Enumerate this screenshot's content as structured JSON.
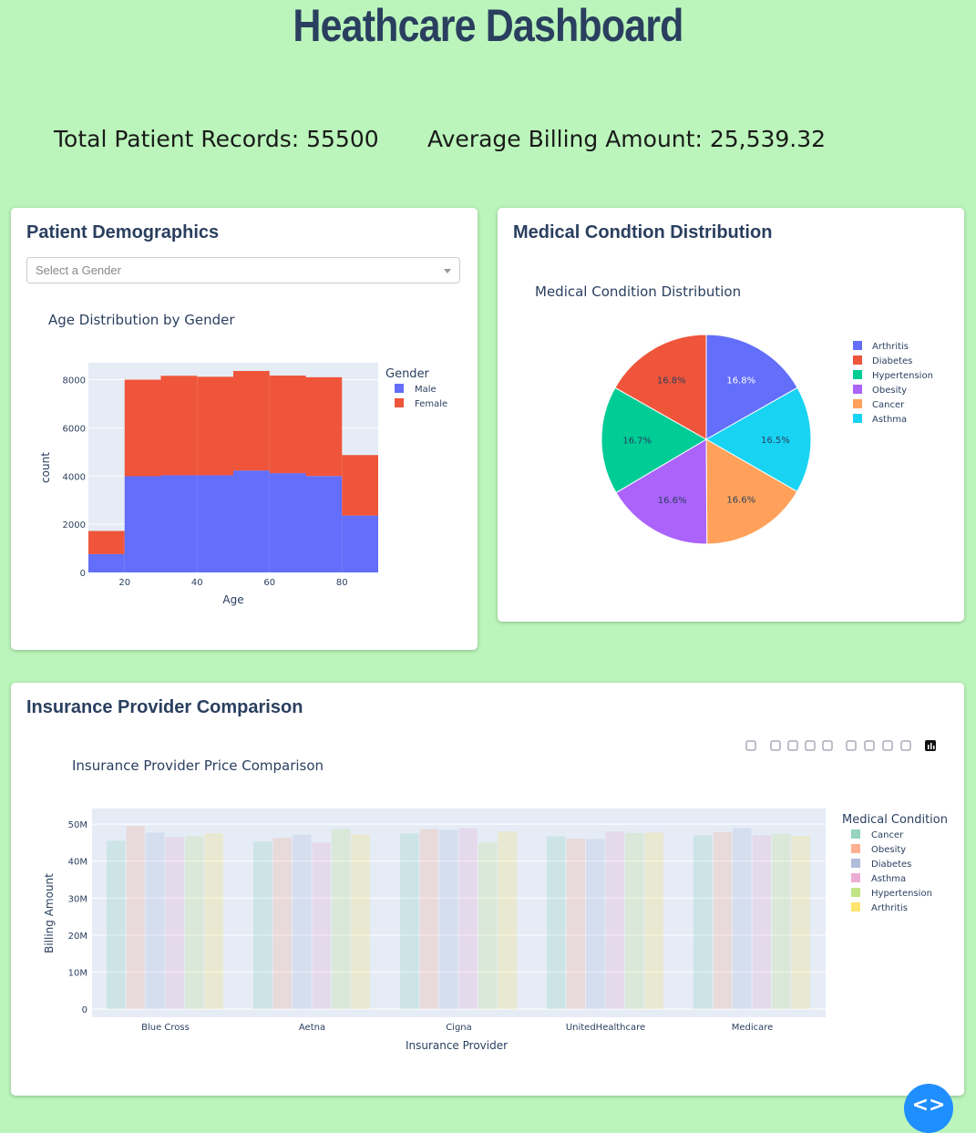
{
  "header": {
    "title": "Heathcare Dashboard"
  },
  "stats": {
    "total_records": "Total Patient Records: 55500",
    "avg_billing": "Average Billing Amount: 25,539.32"
  },
  "demographics": {
    "card_title": "Patient Demographics",
    "dropdown_placeholder": "Select a Gender",
    "chart_title": "Age Distribution by Gender",
    "legend_title": "Gender",
    "xlabel": "Age",
    "ylabel": "count",
    "x_ticks": [
      "20",
      "40",
      "60",
      "80"
    ],
    "y_ticks": [
      "0",
      "2000",
      "4000",
      "6000",
      "8000"
    ]
  },
  "conditions": {
    "card_title": "Medical Condtion Distribution",
    "chart_title": "Medical Condition Distribution"
  },
  "insurance": {
    "card_title": "Insurance Provider Comparison",
    "chart_title": "Insurance Provider Price Comparison",
    "legend_title": "Medical Condition",
    "xlabel": "Insurance Provider",
    "ylabel": "Billing Amount",
    "y_ticks": [
      "0",
      "10M",
      "20M",
      "30M",
      "40M",
      "50M"
    ],
    "modebar": [
      "camera-icon",
      "zoom-icon",
      "pan-icon",
      "box-select-icon",
      "lasso-icon",
      "zoom-in-icon",
      "zoom-out-icon",
      "autoscale-icon",
      "reset-axes-icon",
      "plotly-logo-icon"
    ]
  },
  "fab": {
    "label": "<>"
  },
  "chart_data": [
    {
      "type": "bar",
      "stacked": true,
      "title": "Age Distribution by Gender",
      "xlabel": "Age",
      "ylabel": "count",
      "bins": [
        [
          10,
          20
        ],
        [
          20,
          30
        ],
        [
          30,
          40
        ],
        [
          40,
          50
        ],
        [
          50,
          60
        ],
        [
          60,
          70
        ],
        [
          70,
          80
        ],
        [
          80,
          90
        ]
      ],
      "ylim": [
        0,
        8700
      ],
      "series": [
        {
          "name": "Male",
          "color": "#636efa",
          "values": [
            760,
            3990,
            4030,
            4030,
            4230,
            4120,
            4000,
            2360
          ]
        },
        {
          "name": "Female",
          "color": "#ef553b",
          "values": [
            960,
            4010,
            4130,
            4090,
            4130,
            4050,
            4100,
            2510
          ]
        }
      ],
      "legend_position": "right"
    },
    {
      "type": "pie",
      "title": "Medical Condition Distribution",
      "slices": [
        {
          "label": "Arthritis",
          "value": 16.8,
          "text": "16.8%",
          "color": "#636efa"
        },
        {
          "label": "Asthma",
          "value": 16.5,
          "text": "16.5%",
          "color": "#19d3f3"
        },
        {
          "label": "Cancer",
          "value": 16.6,
          "text": "16.6%",
          "color": "#ffa15a"
        },
        {
          "label": "Obesity",
          "value": 16.6,
          "text": "16.6%",
          "color": "#ab63fa"
        },
        {
          "label": "Hypertension",
          "value": 16.7,
          "text": "16.7%",
          "color": "#00cc96"
        },
        {
          "label": "Diabetes",
          "value": 16.8,
          "text": "16.8%",
          "color": "#ef553b"
        }
      ],
      "legend_order": [
        "Arthritis",
        "Diabetes",
        "Hypertension",
        "Obesity",
        "Cancer",
        "Asthma"
      ],
      "legend_position": "right"
    },
    {
      "type": "bar",
      "grouped": true,
      "title": "Insurance Provider Price Comparison",
      "xlabel": "Insurance Provider",
      "ylabel": "Billing Amount",
      "categories": [
        "Blue Cross",
        "Aetna",
        "Cigna",
        "UnitedHealthcare",
        "Medicare"
      ],
      "ylim": [
        0,
        52000000
      ],
      "series": [
        {
          "name": "Cancer",
          "color": "#66c2a5",
          "values": [
            45500000,
            45300000,
            47500000,
            46700000,
            47000000
          ]
        },
        {
          "name": "Obesity",
          "color": "#fc8d62",
          "values": [
            49500000,
            46300000,
            48700000,
            46100000,
            47800000
          ]
        },
        {
          "name": "Diabetes",
          "color": "#8da0cb",
          "values": [
            47700000,
            47100000,
            48400000,
            46000000,
            48900000
          ]
        },
        {
          "name": "Asthma",
          "color": "#e78ac3",
          "values": [
            46500000,
            45000000,
            48900000,
            48000000,
            47000000
          ]
        },
        {
          "name": "Hypertension",
          "color": "#a6d854",
          "values": [
            46700000,
            48700000,
            45000000,
            47600000,
            47400000
          ]
        },
        {
          "name": "Arthritis",
          "color": "#ffd92f",
          "values": [
            47500000,
            47200000,
            48000000,
            47700000,
            46800000
          ]
        }
      ],
      "legend_position": "right"
    }
  ]
}
